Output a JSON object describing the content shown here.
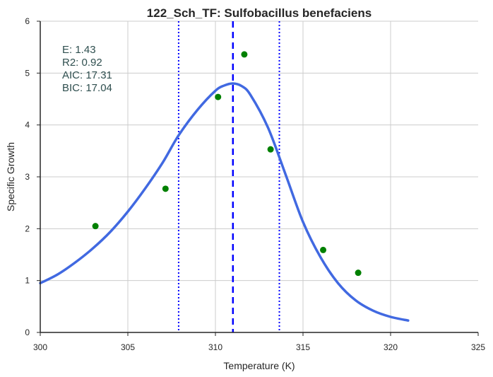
{
  "chart_data": {
    "type": "scatter",
    "title": "122_Sch_TF: Sulfobacillus benefaciens",
    "xlabel": "Temperature (K)",
    "ylabel": "Specific Growth",
    "xlim": [
      300,
      325
    ],
    "ylim": [
      0,
      6
    ],
    "xticks": [
      300,
      305,
      310,
      315,
      320,
      325
    ],
    "yticks": [
      0,
      1,
      2,
      3,
      4,
      5,
      6
    ],
    "grid": true,
    "colors": {
      "points": "#008000",
      "fit": "#4169e1",
      "peak_line": "#0000ff",
      "bound_lines": "#0000ff",
      "grid": "#cccccc",
      "stats_text": "#2f4f4f"
    },
    "points": {
      "x": [
        303.15,
        307.15,
        310.15,
        311.65,
        313.15,
        316.15,
        318.15
      ],
      "y": [
        2.05,
        2.77,
        4.54,
        5.36,
        3.53,
        1.59,
        1.15
      ]
    },
    "fit_curve": {
      "x": [
        300,
        301,
        302,
        303,
        304,
        305,
        306,
        307,
        307.9,
        309,
        310,
        310.5,
        311,
        311.5,
        312,
        313,
        314,
        315,
        316,
        317,
        318,
        319,
        320,
        321
      ],
      "y": [
        0.95,
        1.12,
        1.35,
        1.62,
        1.94,
        2.33,
        2.78,
        3.28,
        3.8,
        4.3,
        4.66,
        4.76,
        4.8,
        4.75,
        4.58,
        3.95,
        3.05,
        2.13,
        1.45,
        0.95,
        0.62,
        0.42,
        0.3,
        0.23
      ]
    },
    "vlines": {
      "peak": 311.0,
      "lower": 307.9,
      "upper": 313.65
    },
    "stats": [
      "E:  1.43",
      "R2:  0.92",
      "AIC: 17.31",
      "BIC: 17.04"
    ]
  }
}
